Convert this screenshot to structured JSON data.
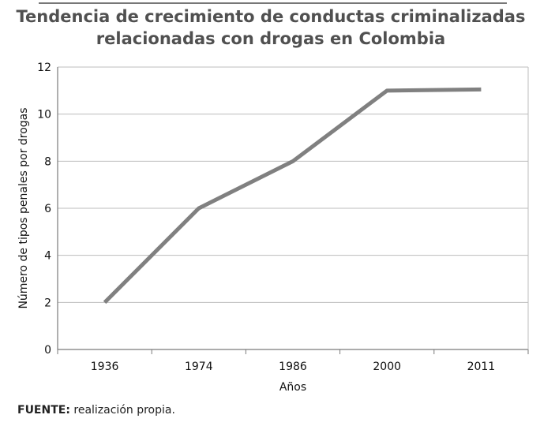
{
  "chart_data": {
    "type": "line",
    "title_lines": [
      "Tendencia de crecimiento de conductas criminalizadas",
      "relacionadas con drogas en Colombia"
    ],
    "categories": [
      "1936",
      "1974",
      "1986",
      "2000",
      "2011"
    ],
    "series": [
      {
        "name": "Número de tipos penales por drogas",
        "values": [
          2,
          6,
          8,
          11,
          11.05
        ]
      }
    ],
    "xlabel": "Años",
    "ylabel": "Número de tipos penales por drogas",
    "ylim": [
      0,
      12
    ],
    "yticks": [
      "0",
      "2",
      "4",
      "6",
      "8",
      "10",
      "12"
    ],
    "grid": true,
    "line_color": "#808080"
  },
  "source": {
    "label": "FUENTE:",
    "text": "realización propia."
  }
}
